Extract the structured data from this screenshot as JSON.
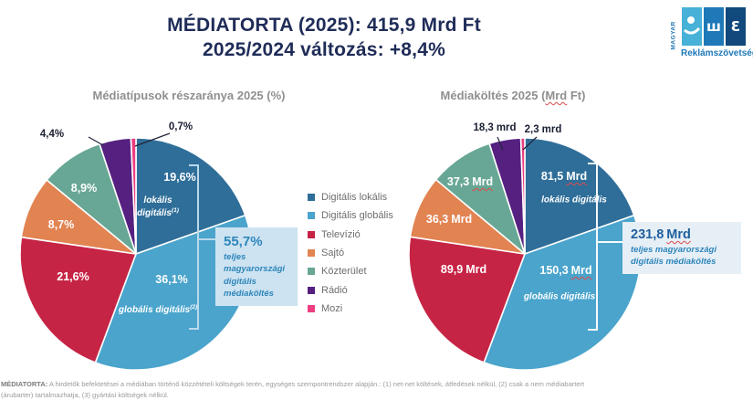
{
  "header": {
    "title_line1": "MÉDIATORTA (2025): 415,9 Mrd Ft",
    "title_line2": "2025/2024 változás: +8,4%",
    "total_mrd_ft": 415.9,
    "change_vs_2024_pct": 8.4
  },
  "logo": {
    "vertical": "MAGYAR",
    "name": "Reklámszövetség"
  },
  "palette": [
    "#2f6e99",
    "#4aa4cc",
    "#c62445",
    "#e28352",
    "#68a795",
    "#552080",
    "#ee3d80"
  ],
  "legend": {
    "items": [
      {
        "label": "Digitális lokális"
      },
      {
        "label": "Digitális globális"
      },
      {
        "label": "Televízió"
      },
      {
        "label": "Sajtó"
      },
      {
        "label": "Közterület"
      },
      {
        "label": "Rádió"
      },
      {
        "label": "Mozi"
      }
    ]
  },
  "chart_data": [
    {
      "type": "pie",
      "title": "Médiatípusok részaránya 2025 (%)",
      "unit": "%",
      "categories": [
        "Digitális lokális",
        "Digitális globális",
        "Televízió",
        "Sajtó",
        "Közterület",
        "Rádió",
        "Mozi"
      ],
      "values": [
        19.6,
        36.1,
        21.6,
        8.7,
        8.9,
        4.4,
        0.7
      ],
      "labels": [
        "19,6%",
        "36,1%",
        "21,6%",
        "8,7%",
        "8,9%",
        "4,4%",
        "0,7%"
      ],
      "annotations": {
        "lokalis": {
          "text": "lokális digitális",
          "sup": "(1)"
        },
        "globalis": {
          "text": "globális digitális",
          "sup": "(2)"
        }
      },
      "callout": {
        "value": "55,7%",
        "note": "teljes magyarországi digitális médiaköltés"
      }
    },
    {
      "type": "pie",
      "title": "Médiaköltés 2025 (Mrd Ft)",
      "title_pre": "Médiaköltés 2025 (",
      "title_mrd": "Mrd",
      "title_post": " Ft)",
      "unit": "Mrd Ft",
      "categories": [
        "Digitális lokális",
        "Digitális globális",
        "Televízió",
        "Sajtó",
        "Közterület",
        "Rádió",
        "Mozi"
      ],
      "values": [
        81.5,
        150.3,
        89.9,
        36.3,
        37.3,
        18.3,
        2.3
      ],
      "labels": [
        {
          "num": "81,5",
          "unit": "Mrd"
        },
        {
          "num": "150,3",
          "unit": "Mrd"
        },
        {
          "num": "89,9",
          "unit": "Mrd"
        },
        {
          "num": "36,3",
          "unit": "Mrd"
        },
        {
          "num": "37,3",
          "unit": "Mrd"
        },
        {
          "num": "18,3",
          "unit": "mrd"
        },
        {
          "num": "2,3",
          "unit": "mrd"
        }
      ],
      "annotations": {
        "lokalis": {
          "text": "lokális digitális"
        },
        "globalis": {
          "text": "globális digitális"
        }
      },
      "callout": {
        "value_num": "231,8",
        "value_unit": "Mrd",
        "note": "teljes magyarországi digitális médiaköltés"
      }
    }
  ],
  "footer": {
    "bold": "MÉDIATORTA:",
    "line1": " A hirdetők befektetései a médiában történő közzétételi költségek terén, egységes szempontrendszer alapján.: (1) net-net költések, átfedések nélkül, (2) csak a nem médiabartert",
    "line2": "(árubarter) tartalmazhatja, (3) gyártási költségek nélkül."
  }
}
